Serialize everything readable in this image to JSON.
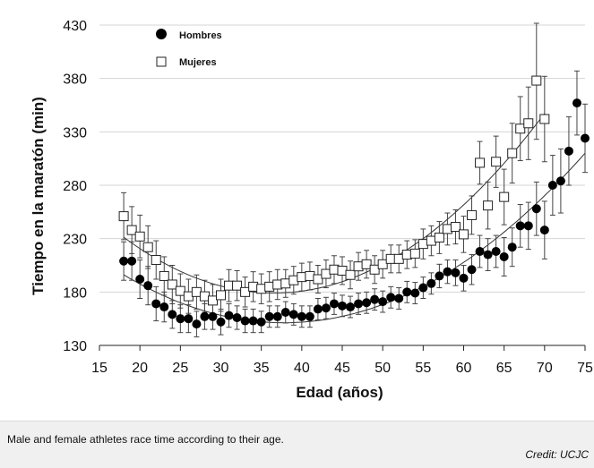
{
  "caption": "Male and female athletes race time according to their age.",
  "credit": "Credit: UCJC",
  "chart_data": {
    "type": "scatter",
    "xlabel": "Edad (años)",
    "ylabel": "Tiempo en la maratón (min)",
    "xlim": [
      15,
      75
    ],
    "ylim": [
      130,
      430
    ],
    "xticks": [
      "15",
      "20",
      "25",
      "30",
      "35",
      "40",
      "45",
      "50",
      "55",
      "60",
      "65",
      "70",
      "75"
    ],
    "yticks": [
      "130",
      "180",
      "230",
      "280",
      "330",
      "380",
      "430"
    ],
    "grid": "horizontal",
    "legend_position": "top-left",
    "colors": {
      "hombres": "#000000",
      "mujeres": "#ffffff",
      "grid": "#d4d4d4",
      "trend": "#333333"
    },
    "series": [
      {
        "name": "Hombres",
        "marker": "filled-circle",
        "x": [
          18,
          19,
          20,
          21,
          22,
          23,
          24,
          25,
          26,
          27,
          28,
          29,
          30,
          31,
          32,
          33,
          34,
          35,
          36,
          37,
          38,
          39,
          40,
          41,
          42,
          43,
          44,
          45,
          46,
          47,
          48,
          49,
          50,
          51,
          52,
          53,
          54,
          55,
          56,
          57,
          58,
          59,
          60,
          61,
          62,
          63,
          64,
          65,
          66,
          67,
          68,
          69,
          70,
          71,
          72,
          73,
          74,
          75
        ],
        "y": [
          209,
          209,
          192,
          186,
          169,
          166,
          159,
          155,
          155,
          150,
          157,
          157,
          152,
          158,
          156,
          153,
          153,
          152,
          157,
          157,
          161,
          159,
          157,
          157,
          164,
          165,
          169,
          167,
          166,
          169,
          170,
          173,
          171,
          175,
          174,
          180,
          179,
          184,
          188,
          195,
          199,
          198,
          193,
          201,
          218,
          215,
          218,
          213,
          222,
          242,
          242,
          258,
          238,
          280,
          284,
          312,
          357,
          324
        ],
        "err": [
          18,
          18,
          18,
          18,
          16,
          14,
          13,
          13,
          13,
          12,
          12,
          12,
          12,
          11,
          11,
          11,
          11,
          10,
          10,
          10,
          10,
          10,
          10,
          10,
          10,
          10,
          10,
          10,
          10,
          10,
          10,
          10,
          10,
          10,
          10,
          10,
          10,
          10,
          10,
          11,
          11,
          12,
          12,
          14,
          15,
          15,
          15,
          18,
          18,
          20,
          22,
          25,
          27,
          28,
          30,
          32,
          30,
          32
        ]
      },
      {
        "name": "Mujeres",
        "marker": "open-square",
        "x": [
          18,
          19,
          20,
          21,
          22,
          23,
          24,
          25,
          26,
          27,
          28,
          29,
          30,
          31,
          32,
          33,
          34,
          35,
          36,
          37,
          38,
          39,
          40,
          41,
          42,
          43,
          44,
          45,
          46,
          47,
          48,
          49,
          50,
          51,
          52,
          53,
          54,
          55,
          56,
          57,
          58,
          59,
          60,
          61,
          62,
          63,
          64,
          65,
          66,
          67,
          68,
          69,
          70
        ],
        "y": [
          251,
          238,
          232,
          222,
          210,
          195,
          187,
          181,
          176,
          180,
          176,
          172,
          177,
          186,
          186,
          180,
          185,
          183,
          185,
          187,
          188,
          191,
          194,
          195,
          192,
          197,
          201,
          200,
          196,
          204,
          206,
          201,
          206,
          211,
          211,
          215,
          216,
          225,
          228,
          231,
          239,
          241,
          234,
          252,
          301,
          261,
          302,
          269,
          310,
          333,
          338,
          378,
          342
        ],
        "err": [
          22,
          22,
          20,
          20,
          18,
          18,
          18,
          16,
          16,
          16,
          15,
          15,
          15,
          15,
          14,
          14,
          14,
          14,
          14,
          14,
          13,
          13,
          13,
          13,
          13,
          13,
          13,
          13,
          13,
          13,
          13,
          13,
          13,
          13,
          13,
          13,
          13,
          14,
          14,
          15,
          15,
          16,
          17,
          18,
          20,
          22,
          24,
          26,
          28,
          30,
          34,
          55,
          40
        ]
      }
    ]
  }
}
